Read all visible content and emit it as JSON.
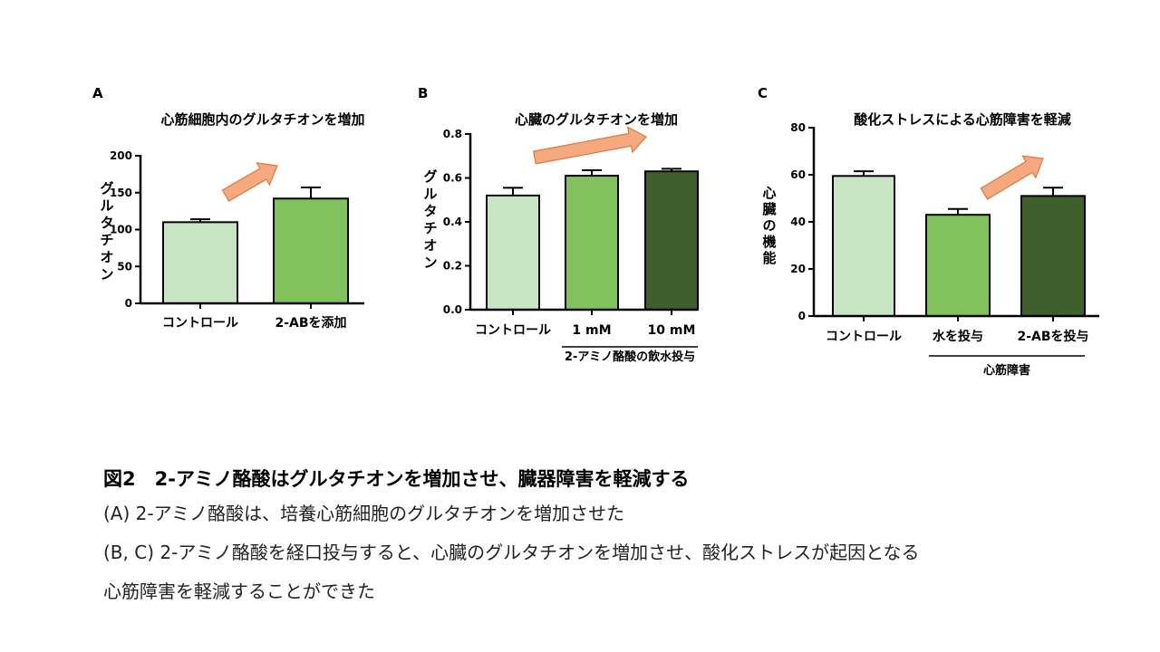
{
  "colors": {
    "light_green": "#c8e6c3",
    "mid_green": "#82c25c",
    "dark_green": "#3f5f2c",
    "arrow_fill": "#f4a97e",
    "arrow_stroke": "#d9793f"
  },
  "chart_data": [
    {
      "type": "bar",
      "panel": "A",
      "title": "心筋細胞内のグルタチオンを増加",
      "ylabel": "グルタチオン",
      "ylim": [
        0,
        200
      ],
      "yticks": [
        0,
        50,
        100,
        150,
        200
      ],
      "categories": [
        "コントロール",
        "2-ABを添加"
      ],
      "values": [
        110,
        142
      ],
      "errors": [
        4,
        15
      ],
      "bar_colors": [
        "light_green",
        "mid_green"
      ],
      "group_label": "",
      "arrow": "up-right"
    },
    {
      "type": "bar",
      "panel": "B",
      "title": "心臓のグルタチオンを増加",
      "ylabel": "グルタチオン",
      "ylim": [
        0,
        0.8
      ],
      "yticks": [
        "0.0",
        "0.2",
        "0.4",
        "0.6",
        "0.8"
      ],
      "categories": [
        "コントロール",
        "1 mM",
        "10 mM"
      ],
      "values": [
        0.52,
        0.61,
        0.63
      ],
      "errors": [
        0.035,
        0.025,
        0.012
      ],
      "bar_colors": [
        "light_green",
        "mid_green",
        "dark_green"
      ],
      "group_label": "2-アミノ酪酸の飲水投与",
      "arrow": "up-right"
    },
    {
      "type": "bar",
      "panel": "C",
      "title": "酸化ストレスによる心筋障害を軽減",
      "ylabel": "心臓の機能",
      "ylim": [
        0,
        80
      ],
      "yticks": [
        0,
        20,
        40,
        60,
        80
      ],
      "categories": [
        "コントロール",
        "水を投与",
        "2-ABを投与"
      ],
      "values": [
        59.5,
        43,
        51
      ],
      "errors": [
        2,
        2.5,
        3.5
      ],
      "bar_colors": [
        "light_green",
        "mid_green",
        "dark_green"
      ],
      "group_label": "心筋障害",
      "arrow": "up-right"
    }
  ],
  "caption": {
    "title": "図2　2-アミノ酪酸はグルタチオンを増加させ、臓器障害を軽減する",
    "lines": [
      "(A) 2-アミノ酪酸は、培養心筋細胞のグルタチオンを増加させた",
      "(B, C) 2-アミノ酪酸を経口投与すると、心臓のグルタチオンを増加させ、酸化ストレスが起因となる",
      "心筋障害を軽減することができた"
    ]
  }
}
